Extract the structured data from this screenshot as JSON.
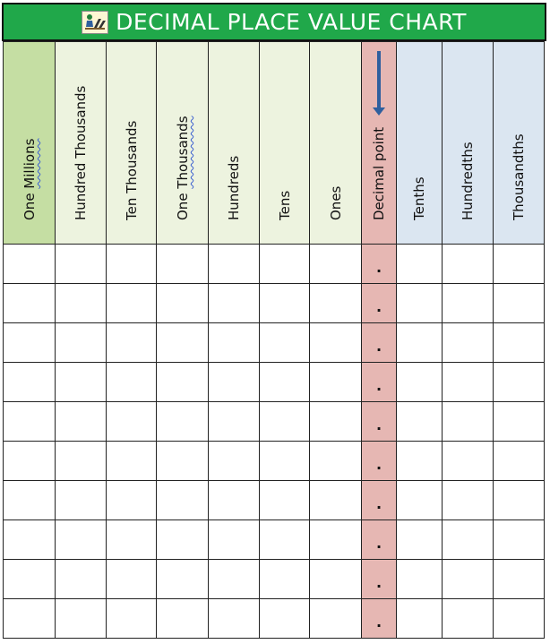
{
  "title": "DECIMAL PLACE VALUE CHART",
  "logo_icon": "student-at-desk-icon",
  "columns": [
    {
      "label": "One Millions",
      "color": "#c5dea3"
    },
    {
      "label": "Hundred Thousands",
      "color": "#edf3df"
    },
    {
      "label": "Ten Thousands",
      "color": "#edf3df"
    },
    {
      "label": "One Thousands",
      "color": "#edf3df"
    },
    {
      "label": "Hundreds",
      "color": "#edf3df"
    },
    {
      "label": "Tens",
      "color": "#edf3df"
    },
    {
      "label": "Ones",
      "color": "#edf3df"
    },
    {
      "label": "Decimal point",
      "color": "#e6b7b3"
    },
    {
      "label": "Tenths",
      "color": "#dbe6f1"
    },
    {
      "label": "Hundredths",
      "color": "#dbe6f1"
    },
    {
      "label": "Thousandths",
      "color": "#dbe6f1"
    }
  ],
  "decimal_mark": ".",
  "row_count": 10,
  "colors": {
    "banner": "#20a84a",
    "arrow": "#2f5f9e"
  }
}
